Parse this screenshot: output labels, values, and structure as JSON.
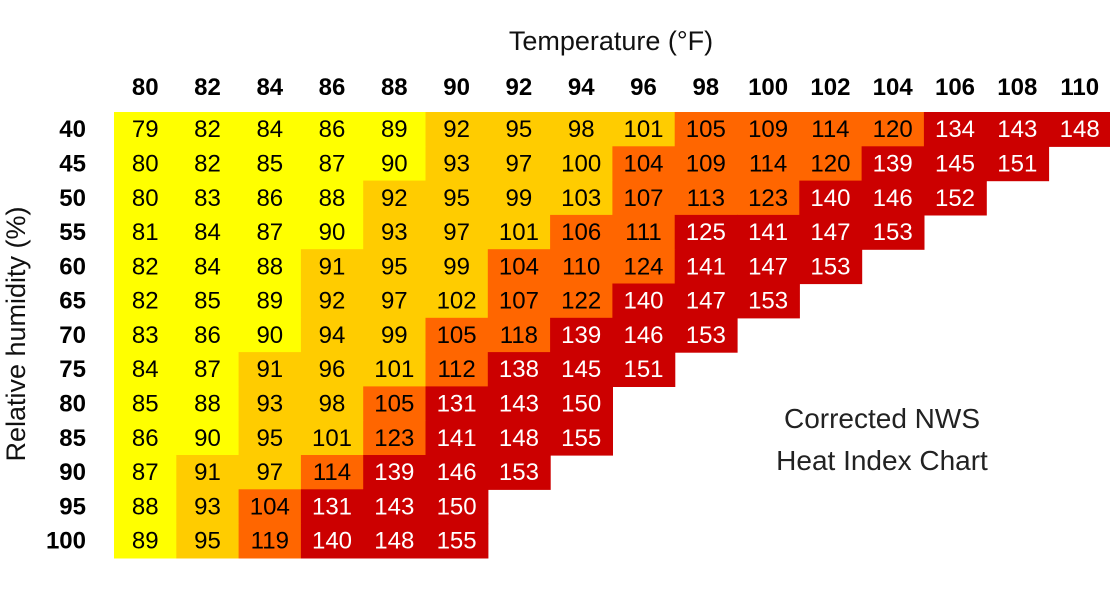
{
  "chart_data": {
    "type": "heatmap",
    "title": "Temperature (°F)",
    "xlabel": "Temperature (°F)",
    "ylabel": "Relative humidity (%)",
    "annotation": [
      "Corrected NWS",
      "Heat Index Chart"
    ],
    "temperatures": [
      "80",
      "82",
      "84",
      "86",
      "88",
      "90",
      "92",
      "94",
      "96",
      "98",
      "100",
      "102",
      "104",
      "106",
      "108",
      "110"
    ],
    "humidities": [
      "40",
      "45",
      "50",
      "55",
      "60",
      "65",
      "70",
      "75",
      "80",
      "85",
      "90",
      "95",
      "100"
    ],
    "values": [
      [
        79,
        82,
        84,
        86,
        89,
        92,
        95,
        98,
        101,
        105,
        109,
        114,
        120,
        134,
        143,
        148
      ],
      [
        80,
        82,
        85,
        87,
        90,
        93,
        97,
        100,
        104,
        109,
        114,
        120,
        139,
        145,
        151
      ],
      [
        80,
        83,
        86,
        88,
        92,
        95,
        99,
        103,
        107,
        113,
        123,
        140,
        146,
        152
      ],
      [
        81,
        84,
        87,
        90,
        93,
        97,
        101,
        106,
        111,
        125,
        141,
        147,
        153
      ],
      [
        82,
        84,
        88,
        91,
        95,
        99,
        104,
        110,
        124,
        141,
        147,
        153
      ],
      [
        82,
        85,
        89,
        92,
        97,
        102,
        107,
        122,
        140,
        147,
        153
      ],
      [
        83,
        86,
        90,
        94,
        99,
        105,
        118,
        139,
        146,
        153
      ],
      [
        84,
        87,
        91,
        96,
        101,
        112,
        138,
        145,
        151
      ],
      [
        85,
        88,
        93,
        98,
        105,
        131,
        143,
        150
      ],
      [
        86,
        90,
        95,
        101,
        123,
        141,
        148,
        155
      ],
      [
        87,
        91,
        97,
        114,
        139,
        146,
        153
      ],
      [
        88,
        93,
        104,
        131,
        143,
        150
      ],
      [
        89,
        95,
        119,
        140,
        148,
        155
      ]
    ],
    "bands": [
      {
        "max": 90,
        "color": "#ffff00",
        "text_color": "#000000"
      },
      {
        "max": 103,
        "color": "#ffcc00",
        "text_color": "#000000"
      },
      {
        "max": 124,
        "color": "#ff6600",
        "text_color": "#000000"
      },
      {
        "max": 999,
        "color": "#cc0000",
        "text_color": "#ffffff"
      }
    ]
  }
}
